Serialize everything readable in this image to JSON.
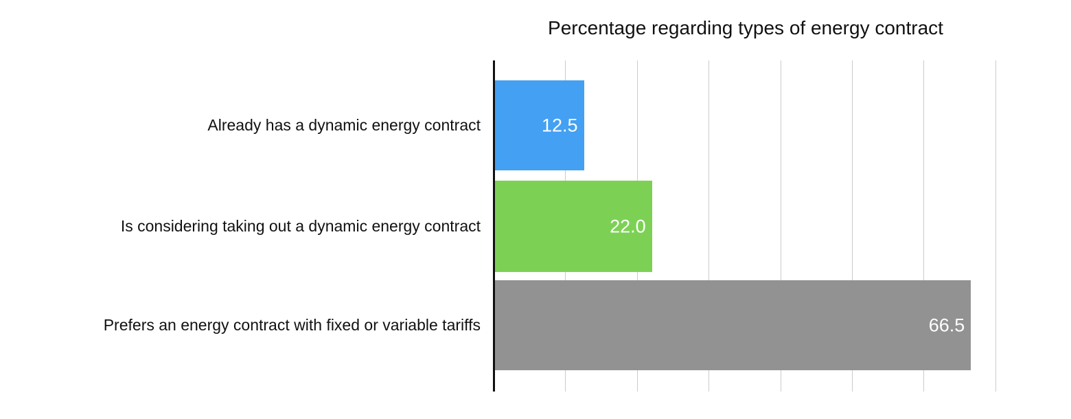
{
  "chart": {
    "title": "Percentage regarding types of energy contract"
  },
  "chart_data": {
    "type": "bar",
    "orientation": "horizontal",
    "title": "Percentage regarding types of energy contract",
    "xlabel": "",
    "ylabel": "",
    "categories": [
      "Already has a dynamic energy contract",
      "Is considering taking out a dynamic energy contract",
      "Prefers an energy contract with fixed or variable tariffs"
    ],
    "values": [
      12.5,
      22.0,
      66.5
    ],
    "value_labels": [
      "12.5",
      "22.0",
      "66.5"
    ],
    "bar_colors": [
      "#43a0f3",
      "#7cd155",
      "#929292"
    ],
    "value_label_color": "#ffffff",
    "xlim": [
      0,
      75
    ],
    "gridlines": [
      10,
      20,
      30,
      40,
      50,
      60,
      70
    ],
    "grid": true,
    "legend": false,
    "axis_color": "#111111",
    "gridline_color": "#cbcbcb"
  }
}
